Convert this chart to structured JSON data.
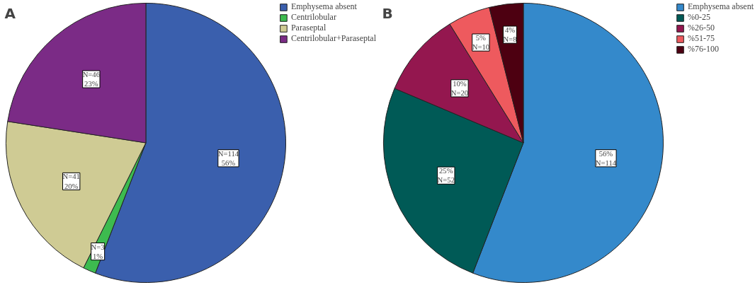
{
  "chart_data": [
    {
      "type": "pie",
      "title": "A",
      "categories": [
        "Emphysema absent",
        "Centrilobular",
        "Paraseptal",
        "Centrilobular+Paraseptal"
      ],
      "values": [
        114,
        3,
        41,
        46
      ],
      "colors": [
        "#3a5fad",
        "#3dbb4f",
        "#cfcb94",
        "#7b2b86"
      ],
      "value_labels": [
        "N=114\n56%",
        "N=3\n1%",
        "N=41\n20%",
        "N=46\n23%"
      ],
      "legend": "top right"
    },
    {
      "type": "pie",
      "title": "B",
      "categories": [
        "Emphysema absent",
        "%0-25",
        "%26-50",
        "%51-75",
        "%76-100"
      ],
      "values": [
        114,
        52,
        20,
        10,
        8
      ],
      "colors": [
        "#3489cb",
        "#005a56",
        "#94174f",
        "#ee5a5e",
        "#4d0011"
      ],
      "value_labels": [
        "56%\nN=114",
        "25%\nN=52",
        "10%\nN=20",
        "5%\nN=10",
        "4%\nN=8"
      ],
      "legend": "top right"
    }
  ]
}
